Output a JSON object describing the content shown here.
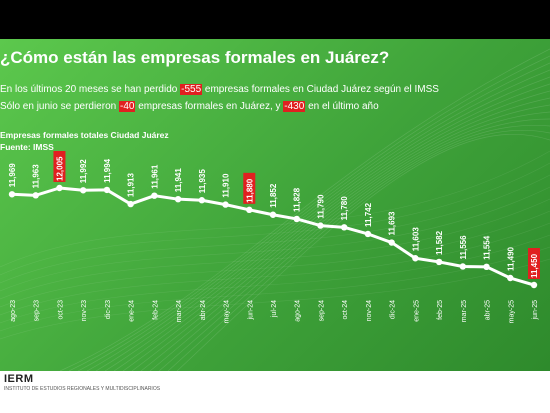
{
  "header": {
    "title": "¿Cómo están las empresas formales en Juárez?",
    "line1_pre": "En los últimos 20 meses se han perdido ",
    "line1_hl": "-555",
    "line1_post": " empresas formales en Ciudad Juárez según el IMSS",
    "line2_pre": "Sólo en junio se perdieron ",
    "line2_hl1": "-40",
    "line2_mid": " empresas formales en Juárez, y ",
    "line2_hl2": "-430",
    "line2_post": " en el último año"
  },
  "chart_meta": {
    "subtitle": "Empresas formales totales Ciudad Juárez",
    "source": "Fuente: IMSS"
  },
  "footer": {
    "logo": "IERM",
    "logo_caption": "INSTITUTO DE ESTUDIOS REGIONALES Y MULTIDISCIPLINARIOS"
  },
  "colors": {
    "background": "#4cb843",
    "line": "#ffffff",
    "highlight": "#e02020"
  },
  "chart_data": {
    "type": "line",
    "title": "Empresas formales totales Ciudad Juárez",
    "x": [
      "ago-23",
      "sep-23",
      "oct-23",
      "nov-23",
      "dic-23",
      "ene-24",
      "feb-24",
      "mar-24",
      "abr-24",
      "may-24",
      "jun-24",
      "jul-24",
      "ago-24",
      "sep-24",
      "oct-24",
      "nov-24",
      "dic-24",
      "ene-25",
      "feb-25",
      "mar-25",
      "abr-25",
      "may-25",
      "jun-25"
    ],
    "series": [
      {
        "values": [
          11969,
          11963,
          12005,
          11992,
          11994,
          11913,
          11961,
          11941,
          11935,
          11910,
          11880,
          11852,
          11828,
          11790,
          11780,
          11742,
          11693,
          11603,
          11582,
          11556,
          11554,
          11490,
          11450
        ],
        "labels": [
          "11,969",
          "11,963",
          "12,005",
          "11,992",
          "11,994",
          "11,913",
          "11,961",
          "11,941",
          "11,935",
          "11,910",
          "11,880",
          "11,852",
          "11,828",
          "11,790",
          "11,780",
          "11,742",
          "11,693",
          "11,603",
          "11,582",
          "11,556",
          "11,554",
          "11,490",
          "11,450"
        ]
      }
    ],
    "highlighted": [
      "oct-23",
      "jun-24",
      "jun-25"
    ],
    "ylim": [
      11400,
      12100
    ],
    "grid": false
  }
}
